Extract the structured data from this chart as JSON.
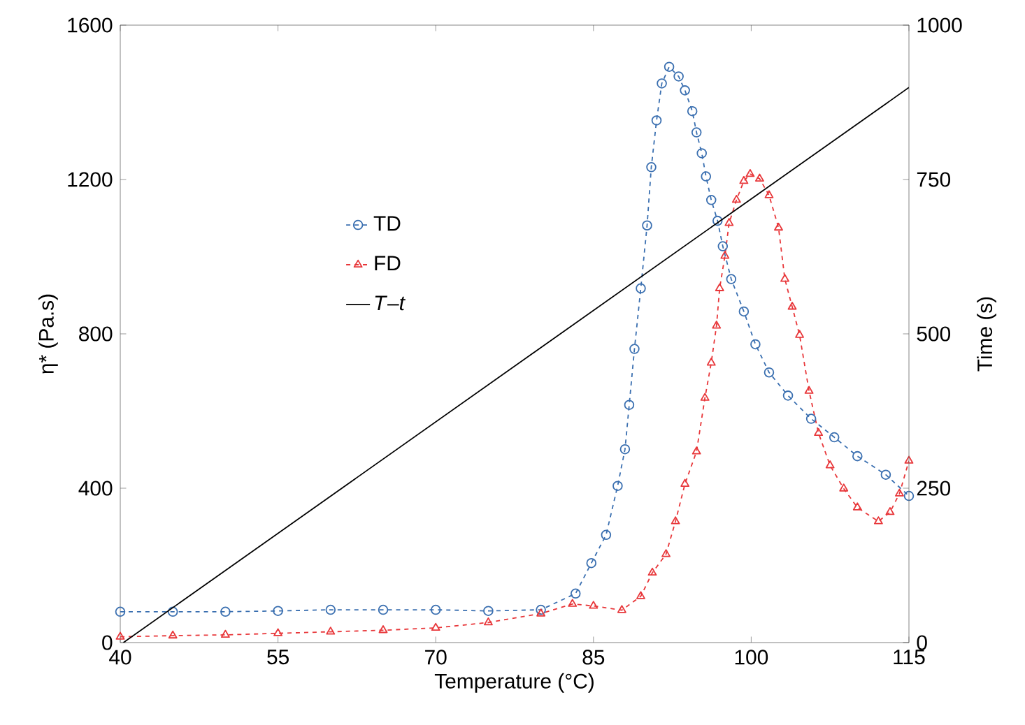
{
  "chart_data": {
    "type": "line",
    "xlabel": "Temperature (°C)",
    "ylabel": "η* (Pa.s)",
    "y2label": "Time (s)",
    "xlim": [
      40,
      115
    ],
    "xticks": [
      40,
      55,
      70,
      85,
      100,
      115
    ],
    "ylim": [
      0,
      1600
    ],
    "yticks": [
      0,
      400,
      800,
      1200,
      1600
    ],
    "y2lim": [
      0,
      1000
    ],
    "y2ticks": [
      0,
      250,
      500,
      750,
      1000
    ],
    "legend": "left",
    "grid": false,
    "series": [
      {
        "name": "TD",
        "color": "#3a6fb0",
        "marker": "circle",
        "line_style": "dashed",
        "x": [
          40,
          45,
          50,
          55,
          60,
          65,
          70,
          75,
          80,
          83.3,
          84.8,
          86.2,
          87.3,
          88.0,
          88.4,
          88.9,
          89.5,
          90.1,
          90.5,
          91.0,
          91.5,
          92.2,
          93.1,
          93.7,
          94.4,
          94.8,
          95.3,
          95.7,
          96.2,
          96.8,
          97.3,
          98.1,
          99.3,
          100.4,
          101.7,
          103.5,
          105.7,
          107.9,
          110.1,
          112.8,
          115
        ],
        "values": [
          80,
          80,
          80,
          82,
          85,
          85,
          85,
          82,
          85,
          127,
          206,
          279,
          406,
          501,
          616,
          761,
          918,
          1081,
          1232,
          1353,
          1449,
          1492,
          1467,
          1431,
          1377,
          1322,
          1268,
          1208,
          1147,
          1093,
          1027,
          942,
          858,
          773,
          700,
          640,
          580,
          532,
          483,
          435,
          380
        ]
      },
      {
        "name": "FD",
        "color": "#e8373a",
        "marker": "triangle",
        "line_style": "dashed",
        "x": [
          40,
          45,
          50,
          55,
          60,
          65,
          70,
          75,
          80,
          83,
          85,
          87.7,
          89.5,
          90.6,
          91.9,
          92.8,
          93.7,
          94.8,
          95.6,
          96.2,
          96.7,
          97.0,
          97.5,
          97.9,
          98.6,
          99.3,
          99.9,
          100.8,
          101.7,
          102.6,
          103.2,
          103.9,
          104.6,
          105.5,
          106.4,
          107.5,
          108.8,
          110.1,
          112.1,
          113.2,
          114.1,
          115
        ],
        "values": [
          15,
          18,
          20,
          24,
          28,
          32,
          38,
          52,
          75,
          100,
          95,
          84,
          120,
          181,
          229,
          314,
          411,
          495,
          634,
          725,
          821,
          918,
          1002,
          1087,
          1147,
          1196,
          1214,
          1202,
          1159,
          1075,
          942,
          870,
          797,
          652,
          543,
          459,
          399,
          350,
          314,
          338,
          386,
          471
        ]
      },
      {
        "name": "*T*–*t*",
        "color": "#000000",
        "marker": "none",
        "line_style": "solid",
        "axis": "y2",
        "x": [
          40.3,
          115
        ],
        "values": [
          0,
          899
        ]
      }
    ]
  }
}
